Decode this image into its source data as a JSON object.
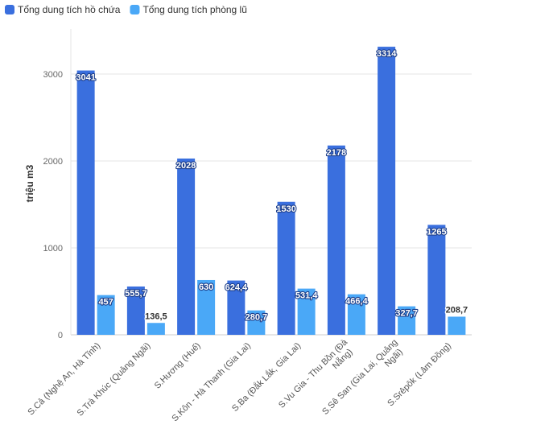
{
  "chart_data": {
    "type": "bar",
    "title": "",
    "xlabel": "",
    "ylabel": "triệu m3",
    "ylim": [
      0,
      3500
    ],
    "yticks": [
      0,
      1000,
      2000,
      3000
    ],
    "grid": true,
    "legend_position": "top-left",
    "categories": [
      "S.Cả (Nghệ An, Hà Tĩnh)",
      "S.Trà Khúc (Quảng Ngãi)",
      "S.Hương (Huế)",
      "S.Kôn - Hà Thanh (Gia Lai)",
      "S.Ba (Đắk Lắk, Gia Lai)",
      "S.Vu Gia - Thu Bồn (Đà Nẵng)",
      "S.Sê San (Gia Lai, Quảng Ngãi)",
      "S.Srêpôk (Lâm Đồng)"
    ],
    "category_lines": [
      [
        "S.Cả (Nghệ An, Hà Tĩnh)"
      ],
      [
        "S.Trà Khúc (Quảng Ngãi)"
      ],
      [
        "S.Hương (Huế)"
      ],
      [
        "S.Kôn - Hà Thanh (Gia Lai)"
      ],
      [
        "S.Ba (Đắk Lắk, Gia Lai)"
      ],
      [
        "S.Vu Gia - Thu Bồn (Đà",
        "Nẵng)"
      ],
      [
        "S.Sê San (Gia Lai, Quảng",
        "Ngãi)"
      ],
      [
        "S.Srêpôk (Lâm Đồng)"
      ]
    ],
    "series": [
      {
        "name": "Tổng dung tích hồ chứa",
        "color": "#3a6fde",
        "values": [
          3041,
          555.7,
          2028,
          624.4,
          1530,
          2178,
          3314,
          1265
        ],
        "labels": [
          "3041",
          "555,7",
          "2028",
          "624,4",
          "1530",
          "2178",
          "3314",
          "1265"
        ]
      },
      {
        "name": "Tổng dung tích phòng lũ",
        "color": "#4aa8f7",
        "values": [
          457,
          136.5,
          630,
          280.7,
          531.4,
          466.4,
          327.7,
          208.7
        ],
        "labels": [
          "457",
          "136,5",
          "630",
          "280,7",
          "531,4",
          "466,4",
          "327,7",
          "208,7"
        ]
      }
    ]
  }
}
